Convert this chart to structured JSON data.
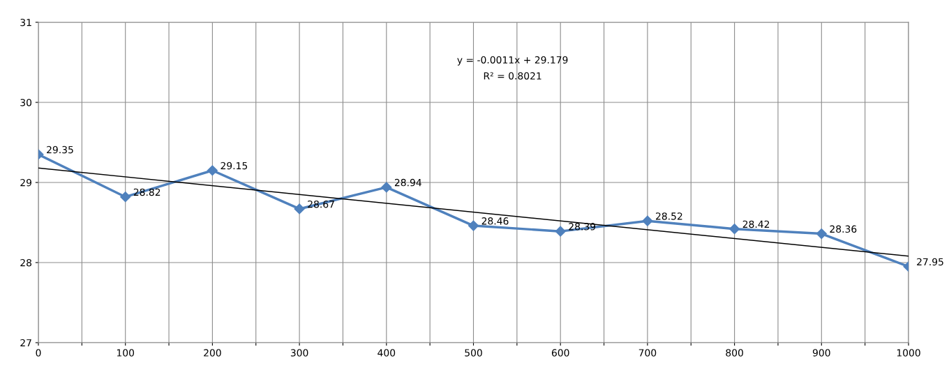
{
  "chart_data": {
    "type": "line",
    "x": [
      0,
      100,
      200,
      300,
      400,
      500,
      600,
      700,
      800,
      900,
      1000
    ],
    "series": [
      {
        "color": "#4f81bd",
        "values": [
          29.35,
          28.82,
          29.15,
          28.67,
          28.94,
          28.46,
          28.39,
          28.52,
          28.42,
          28.36,
          27.95
        ],
        "marker": "diamond",
        "data_labels": true
      },
      {
        "type": "line",
        "color": "#000000",
        "x": [
          0,
          1000
        ],
        "values": [
          29.18,
          28.08
        ],
        "marker": "none"
      }
    ],
    "annotations": [
      "y = -0.0011x + 29.179",
      "R² = 0.8021"
    ],
    "xlim": [
      0,
      1000
    ],
    "xticks": [
      0,
      {
        "value": 50,
        "label": null
      },
      100,
      {
        "value": 150,
        "label": null
      },
      200,
      {
        "value": 250,
        "label": null
      },
      300,
      {
        "value": 350,
        "label": null
      },
      400,
      {
        "value": 450,
        "label": null
      },
      500,
      {
        "value": 550,
        "label": null
      },
      600,
      {
        "value": 650,
        "label": null
      },
      700,
      {
        "value": 750,
        "label": null
      },
      800,
      {
        "value": 850,
        "label": null
      },
      900,
      {
        "value": 950,
        "label": null
      },
      1000
    ],
    "ylim": [
      27,
      31
    ],
    "yticks": [
      27,
      28,
      29,
      30,
      31
    ],
    "grid": true,
    "legend": false
  }
}
